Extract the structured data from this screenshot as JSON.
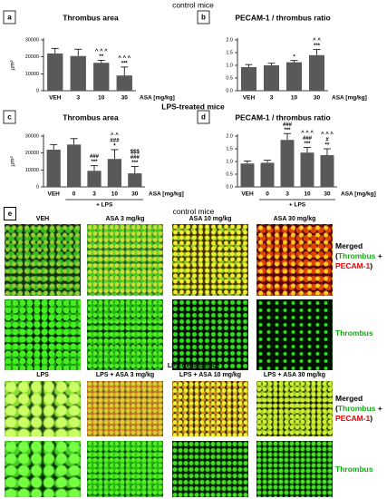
{
  "sections": {
    "control": "control mice",
    "lps": "LPS-treated mice"
  },
  "chart_data": [
    {
      "type": "bar",
      "panel": "a",
      "title": "Thrombus area",
      "y_label": "µm²",
      "x_label": "ASA [mg/kg]",
      "categories": [
        "VEH",
        "3",
        "10",
        "30"
      ],
      "values": [
        22000,
        20500,
        16500,
        9000
      ],
      "errors": [
        3000,
        4000,
        1500,
        5000
      ],
      "color": "#595959",
      "ylim": [
        0,
        30000
      ],
      "yticks": [
        0,
        10000,
        20000,
        30000
      ],
      "annotations": [
        [],
        [],
        [
          "^ ^ ^",
          "**"
        ],
        [
          "^ ^ ^",
          "***"
        ]
      ]
    },
    {
      "type": "bar",
      "panel": "b",
      "title": "PECAM-1 / thrombus ratio",
      "x_label": "ASA [mg/kg]",
      "categories": [
        "VEH",
        "3",
        "10",
        "30"
      ],
      "values": [
        0.93,
        1.0,
        1.12,
        1.4
      ],
      "errors": [
        0.1,
        0.08,
        0.07,
        0.22
      ],
      "color": "#595959",
      "ylim": [
        0,
        2.0
      ],
      "yticks": [
        {
          "value": 0,
          "label": "0.0"
        },
        {
          "value": 0.5,
          "label": "0.5"
        },
        {
          "value": 1,
          "label": "1.0"
        },
        {
          "value": 1.5,
          "label": "1.5"
        },
        {
          "value": 2,
          "label": "2.0"
        }
      ],
      "annotations": [
        [],
        [],
        [
          "*"
        ],
        [
          "^ ^",
          "***"
        ]
      ]
    },
    {
      "type": "bar",
      "panel": "c",
      "title": "Thrombus area",
      "y_label": "µm²",
      "x_label": "ASA [mg/kg]",
      "group_label": "+ LPS",
      "categories": [
        "VEH",
        "0",
        "3",
        "10",
        "30"
      ],
      "values": [
        22000,
        25000,
        9500,
        16500,
        8000
      ],
      "errors": [
        3000,
        3500,
        3000,
        5500,
        4000
      ],
      "color": "#595959",
      "ylim": [
        0,
        30000
      ],
      "yticks": [
        0,
        10000,
        20000,
        30000
      ],
      "annotations": [
        [],
        [],
        [
          "###",
          "***"
        ],
        [
          "^ ^",
          "###",
          "*"
        ],
        [
          "$$$",
          "###",
          "***"
        ]
      ]
    },
    {
      "type": "bar",
      "panel": "d",
      "title": "PECAM-1 / thrombus ratio",
      "x_label": "ASA [mg/kg]",
      "group_label": "+ LPS",
      "categories": [
        "VEH",
        "0",
        "3",
        "10",
        "30"
      ],
      "values": [
        0.92,
        0.95,
        1.85,
        1.35,
        1.25
      ],
      "errors": [
        0.1,
        0.1,
        0.25,
        0.2,
        0.25
      ],
      "color": "#595959",
      "ylim": [
        0,
        2.0
      ],
      "yticks": [
        {
          "value": 0,
          "label": "0.0"
        },
        {
          "value": 0.5,
          "label": "0.5"
        },
        {
          "value": 1,
          "label": "1.0"
        },
        {
          "value": 1.5,
          "label": "1.5"
        },
        {
          "value": 2,
          "label": "2.0"
        }
      ],
      "annotations": [
        [],
        [],
        [
          "###",
          "***"
        ],
        [
          "^ ^ ^",
          "###",
          "***"
        ],
        [
          "^ ^ ^",
          "#",
          "**"
        ]
      ]
    }
  ],
  "images": {
    "panel": "e",
    "control_columns": [
      "VEH",
      "ASA 3 mg/kg",
      "ASA 10 mg/kg",
      "ASA 30 mg/kg"
    ],
    "lps_columns": [
      "LPS",
      "LPS + ASA 3 mg/kg",
      "LPS + ASA 10 mg/kg",
      "LPS + ASA 30 mg/kg"
    ],
    "merged": {
      "word": "Merged",
      "open": "(",
      "thrombus": "Thrombus",
      "plus": "+",
      "pecam": "PECAM-1",
      "close": ")"
    },
    "thrombus_label": "Thrombus"
  }
}
